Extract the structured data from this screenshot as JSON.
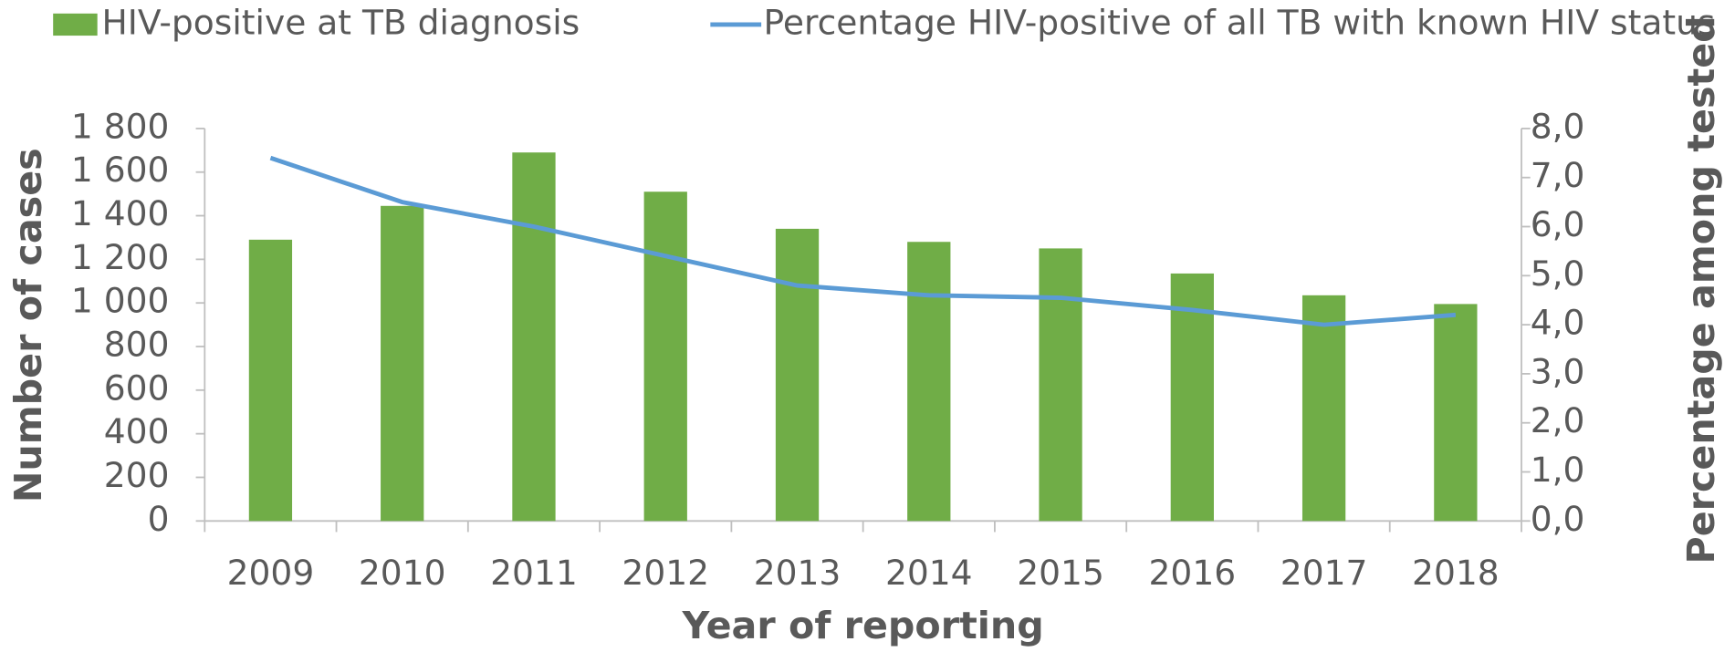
{
  "chart_data": {
    "type": "bar",
    "x_label": "Year of reporting",
    "y_label": "Number of cases",
    "y2_label": "Percentage among tested",
    "categories": [
      "2009",
      "2010",
      "2011",
      "2012",
      "2013",
      "2014",
      "2015",
      "2016",
      "2017",
      "2018"
    ],
    "series": [
      {
        "name": "HIV-positive at TB diagnosis",
        "type": "bar",
        "color": "#70ad47",
        "values": [
          1290,
          1445,
          1690,
          1510,
          1340,
          1280,
          1250,
          1135,
          1035,
          995
        ]
      },
      {
        "name": "Percentage HIV-positive of all TB with known HIV status",
        "type": "line",
        "axis": "y2",
        "color": "#5b9bd5",
        "values": [
          7.4,
          6.5,
          6.0,
          5.4,
          4.8,
          4.6,
          4.55,
          4.3,
          4.0,
          4.2
        ]
      }
    ],
    "ylim": [
      0,
      1800
    ],
    "yticks": [
      0,
      200,
      400,
      600,
      800,
      {
        "value": 1000,
        "label": "1 000"
      },
      {
        "value": 1200,
        "label": "1 200"
      },
      {
        "value": 1400,
        "label": "1 400"
      },
      {
        "value": 1600,
        "label": "1 600"
      },
      {
        "value": 1800,
        "label": "1 800"
      }
    ],
    "y2lim": [
      0,
      8
    ],
    "y2ticks": [
      {
        "value": 0,
        "label": "0,0"
      },
      {
        "value": 1,
        "label": "1,0"
      },
      {
        "value": 2,
        "label": "2,0"
      },
      {
        "value": 3,
        "label": "3,0"
      },
      {
        "value": 4,
        "label": "4,0"
      },
      {
        "value": 5,
        "label": "5,0"
      },
      {
        "value": 6,
        "label": "6,0"
      },
      {
        "value": 7,
        "label": "7,0"
      },
      {
        "value": 8,
        "label": "8,0"
      }
    ],
    "legend": "top",
    "grid": false
  }
}
